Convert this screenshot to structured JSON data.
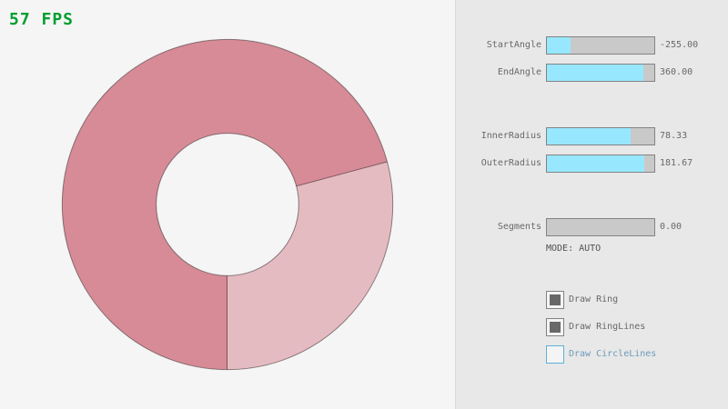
{
  "fps": {
    "text": "57 FPS"
  },
  "ring": {
    "colors": {
      "sector_major": "#D68B96",
      "sector_minor": "#E5BBC2",
      "outline": "rgba(0,0,0,0.42)"
    }
  },
  "panel": {
    "sliders": [
      {
        "name": "StartAngle",
        "label": "StartAngle",
        "value": "-255.00",
        "fill_pct": 21.67
      },
      {
        "name": "EndAngle",
        "label": "EndAngle",
        "value": "360.00",
        "fill_pct": 90.0
      },
      {
        "name": "InnerRadius",
        "label": "InnerRadius",
        "value": "78.33",
        "fill_pct": 78.33
      },
      {
        "name": "OuterRadius",
        "label": "OuterRadius",
        "value": "181.67",
        "fill_pct": 90.83
      },
      {
        "name": "Segments",
        "label": "Segments",
        "value": "0.00",
        "fill_pct": 0.0
      }
    ],
    "mode_text": "MODE: AUTO",
    "checkboxes": [
      {
        "label": "Draw Ring",
        "checked": true,
        "focused": false
      },
      {
        "label": "Draw RingLines",
        "checked": true,
        "focused": false
      },
      {
        "label": "Draw CircleLines",
        "checked": false,
        "focused": true
      }
    ]
  },
  "colors": {
    "page_bg": "#F5F5F5",
    "panel_bg": "#E8E8E8",
    "divider": "#D9D9D9",
    "fps_green": "#009E2F",
    "control_border": "#838383",
    "slider_track": "#C9C9C9",
    "slider_fill": "#97E8FF",
    "text_normal": "#686868",
    "text_dark": "#505050",
    "checkbox_inner": "#F4F4F4",
    "checkbox_check": "#686868",
    "focus_border": "#5BB2D9",
    "focus_text": "#6C9BBC"
  }
}
